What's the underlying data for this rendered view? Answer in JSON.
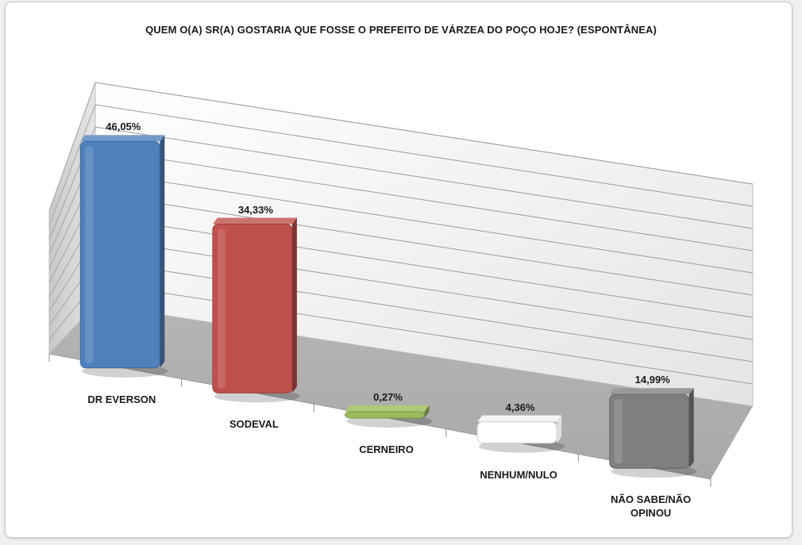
{
  "chart_data": {
    "type": "bar",
    "title": "QUEM O(A) SR(A) GOSTARIA QUE FOSSE O PREFEITO DE VÁRZEA DO POÇO HOJE? (ESPONTÂNEA)",
    "categories": [
      "DR EVERSON",
      "SODEVAL",
      "CERNEIRO",
      "NENHUM/NULO",
      "NÃO SABE/NÃO OPINOU"
    ],
    "values": [
      46.05,
      34.33,
      0.27,
      4.36,
      14.99
    ],
    "value_labels": [
      "46,05%",
      "34,33%",
      "0,27%",
      "4,36%",
      "14,99%"
    ],
    "colors": [
      "#4f81bd",
      "#c0504d",
      "#9bbb59",
      "#ffffff",
      "#7f7f7f"
    ],
    "style": "3d-column",
    "grid": true,
    "legend": "none"
  }
}
